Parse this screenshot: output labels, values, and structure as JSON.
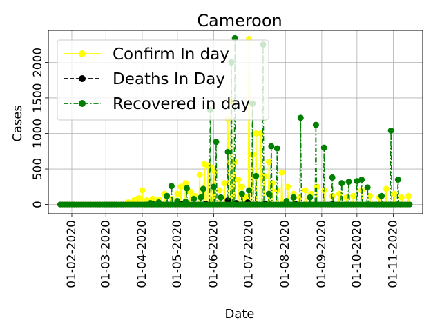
{
  "chart_data": {
    "type": "line",
    "title": "Cameroon",
    "xlabel": "Date",
    "ylabel": "Cases",
    "x_range": [
      "2020-01-12",
      "2020-11-26"
    ],
    "ylim": [
      -130,
      2450
    ],
    "grid": true,
    "legend_position": "top-left",
    "x_ticks": [
      "01-02-2020",
      "01-03-2020",
      "01-04-2020",
      "01-05-2020",
      "01-06-2020",
      "01-07-2020",
      "01-08-2020",
      "01-09-2020",
      "01-10-2020",
      "01-11-2020"
    ],
    "x_tick_dates": [
      "2020-02-01",
      "2020-03-01",
      "2020-04-01",
      "2020-05-01",
      "2020-06-01",
      "2020-07-01",
      "2020-08-01",
      "2020-09-01",
      "2020-10-01",
      "2020-11-01"
    ],
    "y_ticks": [
      0,
      500,
      1000,
      1500,
      2000
    ],
    "y_tick_labels": [
      "0",
      "500",
      "1000",
      "1500",
      "2000"
    ],
    "series": [
      {
        "name": "Confirm In day",
        "color": "#ffff00",
        "style": "solid",
        "points": [
          {
            "x": "2020-03-20",
            "y": 30
          },
          {
            "x": "2020-03-25",
            "y": 60
          },
          {
            "x": "2020-03-29",
            "y": 90
          },
          {
            "x": "2020-04-01",
            "y": 200
          },
          {
            "x": "2020-04-05",
            "y": 60
          },
          {
            "x": "2020-04-10",
            "y": 80
          },
          {
            "x": "2020-04-15",
            "y": 70
          },
          {
            "x": "2020-04-20",
            "y": 150
          },
          {
            "x": "2020-04-26",
            "y": 80
          },
          {
            "x": "2020-05-01",
            "y": 150
          },
          {
            "x": "2020-05-04",
            "y": 250
          },
          {
            "x": "2020-05-08",
            "y": 300
          },
          {
            "x": "2020-05-12",
            "y": 180
          },
          {
            "x": "2020-05-16",
            "y": 120
          },
          {
            "x": "2020-05-20",
            "y": 420
          },
          {
            "x": "2020-05-24",
            "y": 570
          },
          {
            "x": "2020-05-27",
            "y": 550
          },
          {
            "x": "2020-05-30",
            "y": 520
          },
          {
            "x": "2020-06-02",
            "y": 460
          },
          {
            "x": "2020-06-06",
            "y": 200
          },
          {
            "x": "2020-06-10",
            "y": 300
          },
          {
            "x": "2020-06-13",
            "y": 1200
          },
          {
            "x": "2020-06-16",
            "y": 1450
          },
          {
            "x": "2020-06-19",
            "y": 600
          },
          {
            "x": "2020-06-22",
            "y": 350
          },
          {
            "x": "2020-06-25",
            "y": 250
          },
          {
            "x": "2020-06-28",
            "y": 100
          },
          {
            "x": "2020-07-01",
            "y": 2330
          },
          {
            "x": "2020-07-04",
            "y": 700
          },
          {
            "x": "2020-07-07",
            "y": 1000
          },
          {
            "x": "2020-07-11",
            "y": 1000
          },
          {
            "x": "2020-07-14",
            "y": 400
          },
          {
            "x": "2020-07-18",
            "y": 600
          },
          {
            "x": "2020-07-21",
            "y": 300
          },
          {
            "x": "2020-07-25",
            "y": 200
          },
          {
            "x": "2020-07-29",
            "y": 450
          },
          {
            "x": "2020-08-03",
            "y": 250
          },
          {
            "x": "2020-08-08",
            "y": 150
          },
          {
            "x": "2020-08-13",
            "y": 100
          },
          {
            "x": "2020-08-18",
            "y": 200
          },
          {
            "x": "2020-08-23",
            "y": 150
          },
          {
            "x": "2020-08-28",
            "y": 250
          },
          {
            "x": "2020-09-03",
            "y": 200
          },
          {
            "x": "2020-09-10",
            "y": 120
          },
          {
            "x": "2020-09-16",
            "y": 150
          },
          {
            "x": "2020-09-22",
            "y": 100
          },
          {
            "x": "2020-09-28",
            "y": 120
          },
          {
            "x": "2020-10-05",
            "y": 200
          },
          {
            "x": "2020-10-12",
            "y": 120
          },
          {
            "x": "2020-10-20",
            "y": 100
          },
          {
            "x": "2020-10-26",
            "y": 220
          },
          {
            "x": "2020-11-02",
            "y": 150
          },
          {
            "x": "2020-11-08",
            "y": 100
          },
          {
            "x": "2020-11-14",
            "y": 120
          }
        ]
      },
      {
        "name": "Deaths In Day",
        "color": "#000000",
        "style": "dashed",
        "points": [
          {
            "x": "2020-04-10",
            "y": 5
          },
          {
            "x": "2020-05-05",
            "y": 10
          },
          {
            "x": "2020-05-25",
            "y": 10
          },
          {
            "x": "2020-06-13",
            "y": 60
          },
          {
            "x": "2020-06-20",
            "y": 20
          },
          {
            "x": "2020-06-30",
            "y": 30
          },
          {
            "x": "2020-07-15",
            "y": 10
          },
          {
            "x": "2020-08-10",
            "y": 5
          },
          {
            "x": "2020-09-10",
            "y": 5
          }
        ]
      },
      {
        "name": "Recovered in day",
        "color": "#008000",
        "style": "dashdot",
        "points": [
          {
            "x": "2020-04-08",
            "y": 20
          },
          {
            "x": "2020-04-15",
            "y": 30
          },
          {
            "x": "2020-04-22",
            "y": 120
          },
          {
            "x": "2020-04-26",
            "y": 260
          },
          {
            "x": "2020-05-01",
            "y": 50
          },
          {
            "x": "2020-05-08",
            "y": 40
          },
          {
            "x": "2020-05-09",
            "y": 230
          },
          {
            "x": "2020-05-15",
            "y": 80
          },
          {
            "x": "2020-05-21",
            "y": 100
          },
          {
            "x": "2020-05-23",
            "y": 220
          },
          {
            "x": "2020-05-29",
            "y": 1330
          },
          {
            "x": "2020-06-01",
            "y": 250
          },
          {
            "x": "2020-06-03",
            "y": 880
          },
          {
            "x": "2020-06-07",
            "y": 100
          },
          {
            "x": "2020-06-13",
            "y": 740
          },
          {
            "x": "2020-06-16",
            "y": 2000
          },
          {
            "x": "2020-06-19",
            "y": 2340
          },
          {
            "x": "2020-06-25",
            "y": 150
          },
          {
            "x": "2020-07-01",
            "y": 200
          },
          {
            "x": "2020-07-04",
            "y": 1420
          },
          {
            "x": "2020-07-07",
            "y": 400
          },
          {
            "x": "2020-07-13",
            "y": 2250
          },
          {
            "x": "2020-07-18",
            "y": 150
          },
          {
            "x": "2020-07-20",
            "y": 820
          },
          {
            "x": "2020-07-25",
            "y": 790
          },
          {
            "x": "2020-08-02",
            "y": 50
          },
          {
            "x": "2020-08-08",
            "y": 100
          },
          {
            "x": "2020-08-14",
            "y": 1220
          },
          {
            "x": "2020-08-22",
            "y": 100
          },
          {
            "x": "2020-08-27",
            "y": 1120
          },
          {
            "x": "2020-09-03",
            "y": 800
          },
          {
            "x": "2020-09-10",
            "y": 380
          },
          {
            "x": "2020-09-18",
            "y": 300
          },
          {
            "x": "2020-09-24",
            "y": 320
          },
          {
            "x": "2020-10-01",
            "y": 330
          },
          {
            "x": "2020-10-05",
            "y": 350
          },
          {
            "x": "2020-10-10",
            "y": 240
          },
          {
            "x": "2020-10-22",
            "y": 120
          },
          {
            "x": "2020-10-30",
            "y": 1040
          },
          {
            "x": "2020-11-05",
            "y": 350
          }
        ]
      }
    ]
  }
}
